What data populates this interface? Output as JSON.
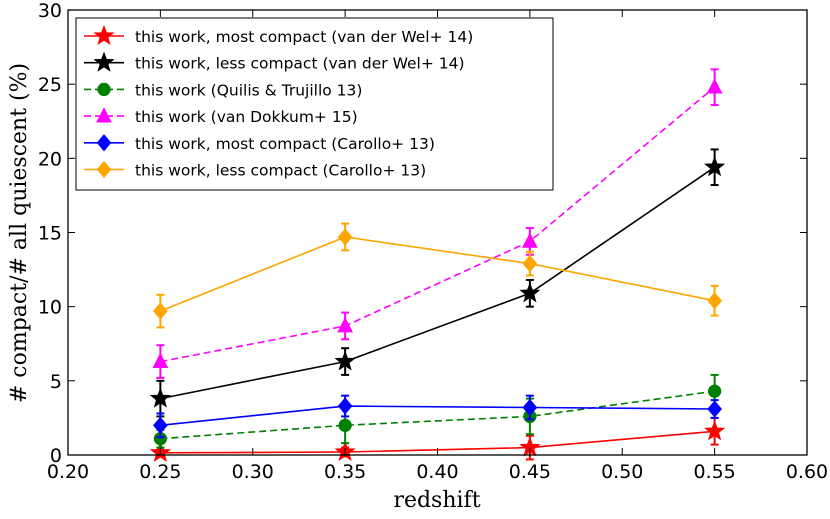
{
  "chart_data": {
    "type": "line",
    "xlabel": "redshift",
    "ylabel": "# compact/# all quiescent (%)",
    "xlim": [
      0.2,
      0.6
    ],
    "ylim": [
      0,
      30
    ],
    "xticks": [
      "0.20",
      "0.25",
      "0.30",
      "0.35",
      "0.40",
      "0.45",
      "0.50",
      "0.55",
      "0.60"
    ],
    "yticks": [
      "0",
      "5",
      "10",
      "15",
      "20",
      "25",
      "30"
    ],
    "legend_position": "top-left",
    "x": [
      0.25,
      0.35,
      0.45,
      0.55
    ],
    "series": [
      {
        "name": "this work, most compact (van der Wel+ 14)",
        "color": "#ff0000",
        "linestyle": "solid",
        "marker": "star",
        "values": [
          0.15,
          0.2,
          0.5,
          1.6
        ],
        "errors": [
          0.2,
          0.3,
          0.8,
          0.9
        ]
      },
      {
        "name": "this work, less compact (van der Wel+ 14)",
        "color": "#000000",
        "linestyle": "solid",
        "marker": "star",
        "values": [
          3.8,
          6.3,
          10.9,
          19.4
        ],
        "errors": [
          1.2,
          0.9,
          0.9,
          1.2
        ]
      },
      {
        "name": "this work (Quilis & Trujillo 13)",
        "color": "#008000",
        "linestyle": "dashed",
        "marker": "circle",
        "values": [
          1.1,
          2.0,
          2.6,
          4.3
        ],
        "errors": [
          0.6,
          1.2,
          1.2,
          1.1
        ]
      },
      {
        "name": "this work (van Dokkum+ 15)",
        "color": "#ff00ff",
        "linestyle": "dashed",
        "marker": "triangle",
        "values": [
          6.3,
          8.7,
          14.4,
          24.8
        ],
        "errors": [
          1.1,
          0.9,
          0.9,
          1.2
        ]
      },
      {
        "name": "this work, most compact (Carollo+ 13)",
        "color": "#0000ff",
        "linestyle": "solid",
        "marker": "diamond",
        "values": [
          2.0,
          3.3,
          3.2,
          3.1
        ],
        "errors": [
          0.8,
          0.7,
          0.8,
          0.6
        ]
      },
      {
        "name": "this work, less compact (Carollo+ 13)",
        "color": "#ffa500",
        "linestyle": "solid",
        "marker": "diamond",
        "values": [
          9.7,
          14.7,
          12.9,
          10.4
        ],
        "errors": [
          1.1,
          0.9,
          0.8,
          1.0
        ]
      }
    ]
  }
}
